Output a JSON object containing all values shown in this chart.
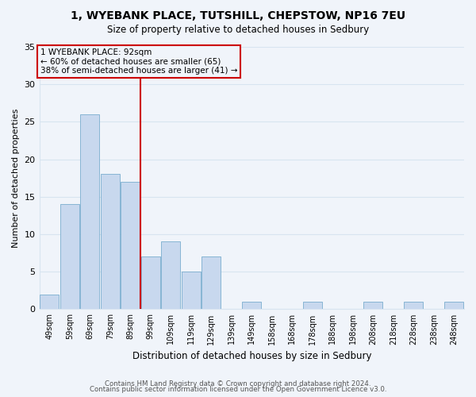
{
  "title1": "1, WYEBANK PLACE, TUTSHILL, CHEPSTOW, NP16 7EU",
  "title2": "Size of property relative to detached houses in Sedbury",
  "xlabel": "Distribution of detached houses by size in Sedbury",
  "ylabel": "Number of detached properties",
  "bin_labels": [
    "49sqm",
    "59sqm",
    "69sqm",
    "79sqm",
    "89sqm",
    "99sqm",
    "109sqm",
    "119sqm",
    "129sqm",
    "139sqm",
    "149sqm",
    "158sqm",
    "168sqm",
    "178sqm",
    "188sqm",
    "198sqm",
    "208sqm",
    "218sqm",
    "228sqm",
    "238sqm",
    "248sqm"
  ],
  "bar_values": [
    2,
    14,
    26,
    18,
    17,
    7,
    9,
    5,
    7,
    0,
    1,
    0,
    0,
    1,
    0,
    0,
    1,
    0,
    1,
    0,
    1
  ],
  "bar_color": "#c8d8ee",
  "bar_edge_color": "#7aadce",
  "vline_x": 4.5,
  "vline_color": "#cc0000",
  "annotation_text": "1 WYEBANK PLACE: 92sqm\n← 60% of detached houses are smaller (65)\n38% of semi-detached houses are larger (41) →",
  "annotation_box_edge": "#cc0000",
  "ylim": [
    0,
    35
  ],
  "yticks": [
    0,
    5,
    10,
    15,
    20,
    25,
    30,
    35
  ],
  "footer1": "Contains HM Land Registry data © Crown copyright and database right 2024.",
  "footer2": "Contains public sector information licensed under the Open Government Licence v3.0.",
  "bg_color": "#f0f4fa",
  "grid_color": "#d8e4f0"
}
